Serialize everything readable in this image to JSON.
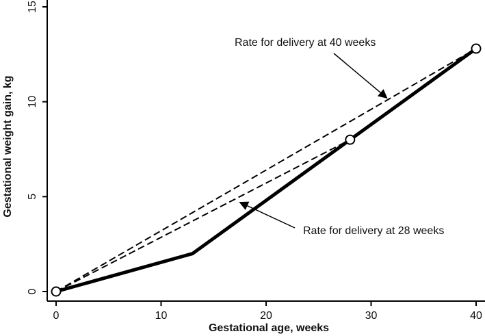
{
  "chart_data": {
    "type": "line",
    "title": "",
    "xlabel": "Gestational age, weeks",
    "ylabel": "Gestational weight gain, kg",
    "xlim": [
      0,
      40
    ],
    "ylim": [
      0,
      15
    ],
    "xticks": [
      0,
      10,
      20,
      30,
      40
    ],
    "yticks": [
      0,
      5,
      10,
      15
    ],
    "grid": false,
    "series": [
      {
        "style": "solid",
        "color": "#000000",
        "x": [
          0,
          13,
          28,
          40
        ],
        "y": [
          0,
          2,
          8,
          12.8
        ]
      },
      {
        "style": "dashed",
        "color": "#000000",
        "x": [
          0,
          40
        ],
        "y": [
          0,
          12.8
        ]
      },
      {
        "style": "dashed",
        "color": "#000000",
        "x": [
          0,
          28,
          40
        ],
        "y": [
          0,
          8,
          12.8
        ]
      }
    ],
    "markers": [
      {
        "x": 0,
        "y": 0
      },
      {
        "x": 28,
        "y": 8
      },
      {
        "x": 40,
        "y": 12.8
      }
    ],
    "annotations": [
      {
        "text": "Rate for delivery at 40 weeks",
        "arrow_to": {
          "x": 31.5,
          "y": 10.2
        }
      },
      {
        "text": "Rate for delivery at 28 weeks",
        "arrow_to": {
          "x": 17.5,
          "y": 4.7
        }
      }
    ]
  }
}
